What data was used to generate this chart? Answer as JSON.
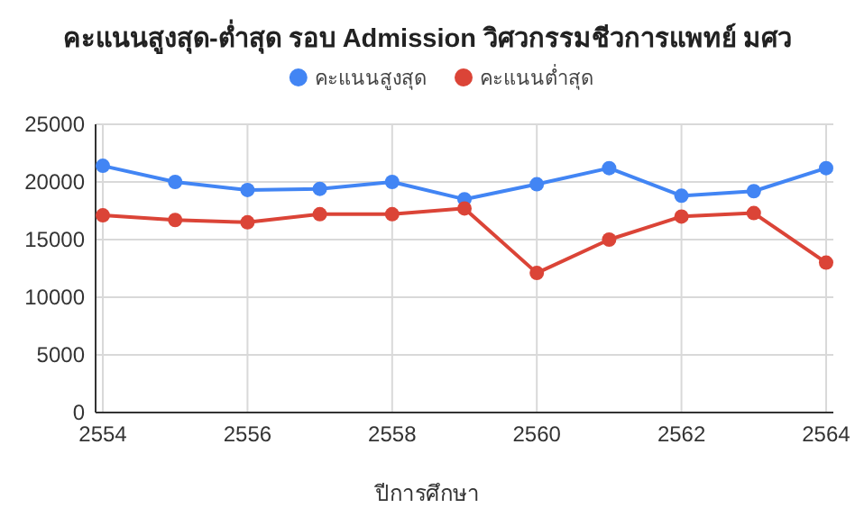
{
  "chart_data": {
    "type": "line",
    "title": "คะแนนสูงสุด-ต่ำสุด รอบ Admission วิศวกรรมชีวการแพทย์ มศว",
    "xlabel": "ปีการศึกษา",
    "x": [
      2554,
      2555,
      2556,
      2557,
      2558,
      2559,
      2560,
      2561,
      2562,
      2563,
      2564
    ],
    "series": [
      {
        "name": "คะแนนสูงสุด",
        "color": "#4285f4",
        "values": [
          21400,
          20000,
          19300,
          19400,
          20000,
          18500,
          19800,
          21200,
          18800,
          19200,
          21200
        ]
      },
      {
        "name": "คะแนนต่ำสุด",
        "color": "#db4437",
        "values": [
          17100,
          16700,
          16500,
          17200,
          17200,
          17700,
          12100,
          15000,
          17000,
          17300,
          13000
        ]
      }
    ],
    "xlim": [
      2553.9,
      2564.1
    ],
    "xticks": [
      2554,
      2556,
      2558,
      2560,
      2562,
      2564
    ],
    "ylim": [
      0,
      25000
    ],
    "yticks": [
      0,
      5000,
      10000,
      15000,
      20000,
      25000
    ],
    "grid": true,
    "legend": "top",
    "marker": "circle",
    "line_style": "solid"
  }
}
